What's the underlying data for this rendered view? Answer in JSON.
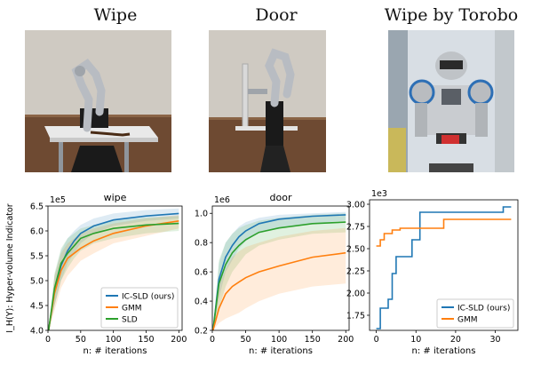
{
  "titles": [
    "Wipe",
    "Door",
    "Wipe by Torobo"
  ],
  "chart_data": [
    {
      "type": "line",
      "title": "wipe",
      "xlabel": "n: # iterations",
      "ylabel": "I_H(Y): Hyper-volume Indicator",
      "exponent": "1e5",
      "xlim": [
        0,
        205
      ],
      "ylim": [
        4.0,
        6.5
      ],
      "xticks": [
        0,
        50,
        100,
        150,
        200
      ],
      "yticks": [
        4.0,
        4.5,
        5.0,
        5.5,
        6.0,
        6.5
      ],
      "yticklabels": [
        "4.0",
        "4.5",
        "5.0",
        "5.5",
        "6.0",
        "6.5"
      ],
      "legend": "lower-right",
      "grid": false,
      "series": [
        {
          "name": "IC-SLD (ours)",
          "color": "#1f77b4",
          "x": [
            1,
            10,
            20,
            30,
            40,
            50,
            70,
            100,
            150,
            200
          ],
          "y": [
            4.0,
            4.8,
            5.3,
            5.6,
            5.8,
            5.95,
            6.1,
            6.22,
            6.3,
            6.35
          ],
          "band_low": [
            4.0,
            4.5,
            5.0,
            5.35,
            5.55,
            5.75,
            5.95,
            6.1,
            6.2,
            6.25
          ],
          "band_high": [
            4.0,
            5.1,
            5.6,
            5.85,
            6.0,
            6.12,
            6.25,
            6.35,
            6.42,
            6.45
          ]
        },
        {
          "name": "GMM",
          "color": "#ff7f0e",
          "x": [
            1,
            10,
            20,
            30,
            40,
            50,
            70,
            100,
            150,
            200
          ],
          "y": [
            4.0,
            4.75,
            5.2,
            5.45,
            5.55,
            5.65,
            5.8,
            5.95,
            6.1,
            6.2
          ],
          "band_low": [
            4.0,
            4.4,
            4.85,
            5.1,
            5.25,
            5.4,
            5.55,
            5.75,
            5.9,
            6.05
          ],
          "band_high": [
            4.0,
            5.1,
            5.55,
            5.75,
            5.85,
            5.95,
            6.05,
            6.15,
            6.25,
            6.32
          ]
        },
        {
          "name": "SLD",
          "color": "#2ca02c",
          "x": [
            1,
            10,
            20,
            30,
            40,
            50,
            70,
            100,
            150,
            200
          ],
          "y": [
            4.0,
            4.85,
            5.35,
            5.55,
            5.7,
            5.85,
            5.95,
            6.05,
            6.12,
            6.15
          ],
          "band_low": [
            4.0,
            4.5,
            5.0,
            5.25,
            5.45,
            5.6,
            5.75,
            5.85,
            5.95,
            6.0
          ],
          "band_high": [
            4.0,
            5.15,
            5.65,
            5.85,
            5.95,
            6.05,
            6.12,
            6.2,
            6.27,
            6.3
          ]
        }
      ]
    },
    {
      "type": "line",
      "title": "door",
      "xlabel": "n: # iterations",
      "ylabel": "",
      "exponent": "1e6",
      "xlim": [
        0,
        205
      ],
      "ylim": [
        0.2,
        1.05
      ],
      "xticks": [
        0,
        50,
        100,
        150,
        200
      ],
      "yticks": [
        0.2,
        0.4,
        0.6,
        0.8,
        1.0
      ],
      "yticklabels": [
        "0.2",
        "0.4",
        "0.6",
        "0.8",
        "1.0"
      ],
      "grid": false,
      "series": [
        {
          "name": "IC-SLD (ours)",
          "color": "#1f77b4",
          "x": [
            1,
            10,
            20,
            30,
            40,
            50,
            70,
            100,
            150,
            200
          ],
          "y": [
            0.2,
            0.55,
            0.7,
            0.78,
            0.84,
            0.88,
            0.93,
            0.96,
            0.98,
            0.99
          ],
          "band_low": [
            0.2,
            0.42,
            0.6,
            0.68,
            0.76,
            0.81,
            0.87,
            0.9,
            0.93,
            0.95
          ],
          "band_high": [
            0.2,
            0.66,
            0.8,
            0.86,
            0.91,
            0.94,
            0.97,
            0.99,
            1.0,
            1.01
          ]
        },
        {
          "name": "SLD",
          "color": "#2ca02c",
          "x": [
            1,
            10,
            20,
            30,
            40,
            50,
            70,
            100,
            150,
            200
          ],
          "y": [
            0.2,
            0.52,
            0.65,
            0.73,
            0.78,
            0.82,
            0.87,
            0.9,
            0.93,
            0.94
          ],
          "band_low": [
            0.2,
            0.35,
            0.5,
            0.6,
            0.66,
            0.72,
            0.78,
            0.82,
            0.86,
            0.87
          ],
          "band_high": [
            0.2,
            0.68,
            0.8,
            0.86,
            0.9,
            0.92,
            0.95,
            0.97,
            0.99,
            1.0
          ]
        },
        {
          "name": "GMM",
          "color": "#ff7f0e",
          "x": [
            1,
            10,
            20,
            30,
            40,
            50,
            70,
            100,
            150,
            200
          ],
          "y": [
            0.2,
            0.35,
            0.45,
            0.5,
            0.53,
            0.56,
            0.6,
            0.64,
            0.7,
            0.73
          ],
          "band_low": [
            0.2,
            0.25,
            0.28,
            0.3,
            0.32,
            0.35,
            0.4,
            0.45,
            0.5,
            0.52
          ],
          "band_high": [
            0.2,
            0.5,
            0.62,
            0.7,
            0.74,
            0.77,
            0.8,
            0.84,
            0.88,
            0.9
          ]
        }
      ]
    },
    {
      "type": "line",
      "title": "",
      "xlabel": "n: # iterations",
      "ylabel": "",
      "exponent": "1e3",
      "xlim": [
        -1.7,
        35.7
      ],
      "ylim": [
        1.58,
        3.05
      ],
      "xticks": [
        0,
        10,
        20,
        30
      ],
      "yticks": [
        1.75,
        2.0,
        2.25,
        2.5,
        2.75,
        3.0
      ],
      "yticklabels": [
        "1.75",
        "2.00",
        "2.25",
        "2.50",
        "2.75",
        "3.00"
      ],
      "legend": "lower-right",
      "grid": false,
      "series": [
        {
          "name": "IC-SLD (ours)",
          "color": "#1f77b4",
          "step": true,
          "x": [
            0,
            1,
            1,
            3,
            3,
            4,
            4,
            5,
            5,
            9,
            9,
            11,
            11,
            32,
            32,
            34
          ],
          "y": [
            1.6,
            1.6,
            1.83,
            1.83,
            1.93,
            1.93,
            2.22,
            2.22,
            2.41,
            2.41,
            2.6,
            2.6,
            2.91,
            2.91,
            2.97,
            2.97
          ]
        },
        {
          "name": "GMM",
          "color": "#ff7f0e",
          "step": true,
          "x": [
            0,
            1,
            1,
            2,
            2,
            4,
            4,
            6,
            6,
            17,
            17,
            34
          ],
          "y": [
            2.53,
            2.53,
            2.6,
            2.6,
            2.67,
            2.67,
            2.71,
            2.71,
            2.73,
            2.73,
            2.83,
            2.83
          ]
        }
      ]
    }
  ]
}
